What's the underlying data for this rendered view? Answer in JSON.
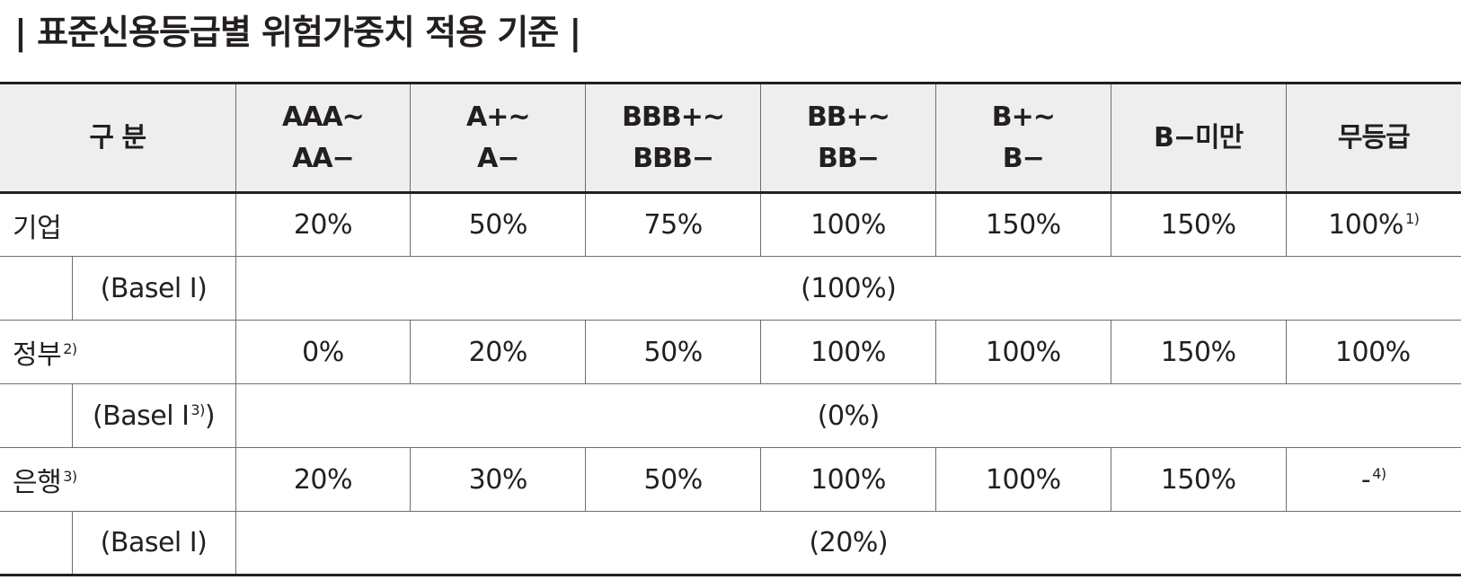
{
  "title": "| 표준신용등급별 위험가중치 적용 기준 |",
  "header": {
    "label": "구 분",
    "grades": [
      [
        "AAA~",
        "AA−"
      ],
      [
        "A+~",
        "A−"
      ],
      [
        "BBB+~",
        "BBB−"
      ],
      [
        "BB+~",
        "BB−"
      ],
      [
        "B+~",
        "B−"
      ],
      [
        "B−미만"
      ],
      [
        "무등급"
      ]
    ]
  },
  "rows": [
    {
      "label": "기업",
      "label_note": "",
      "values": [
        "20%",
        "50%",
        "75%",
        "100%",
        "150%",
        "150%",
        "100%"
      ],
      "last_note": "1)",
      "basel_label": "(Basel Ⅰ)",
      "basel_note": "",
      "basel_value": "(100%)"
    },
    {
      "label": "정부",
      "label_note": "2)",
      "values": [
        "0%",
        "20%",
        "50%",
        "100%",
        "100%",
        "150%",
        "100%"
      ],
      "last_note": "",
      "basel_label": "(Basel Ⅰ",
      "basel_note": "3)",
      "basel_label_close": ")",
      "basel_value": "(0%)"
    },
    {
      "label": "은행",
      "label_note": "3)",
      "values": [
        "20%",
        "30%",
        "50%",
        "100%",
        "100%",
        "150%",
        "-"
      ],
      "last_note": "4)",
      "basel_label": "(Basel Ⅰ)",
      "basel_note": "",
      "basel_value": "(20%)"
    }
  ]
}
